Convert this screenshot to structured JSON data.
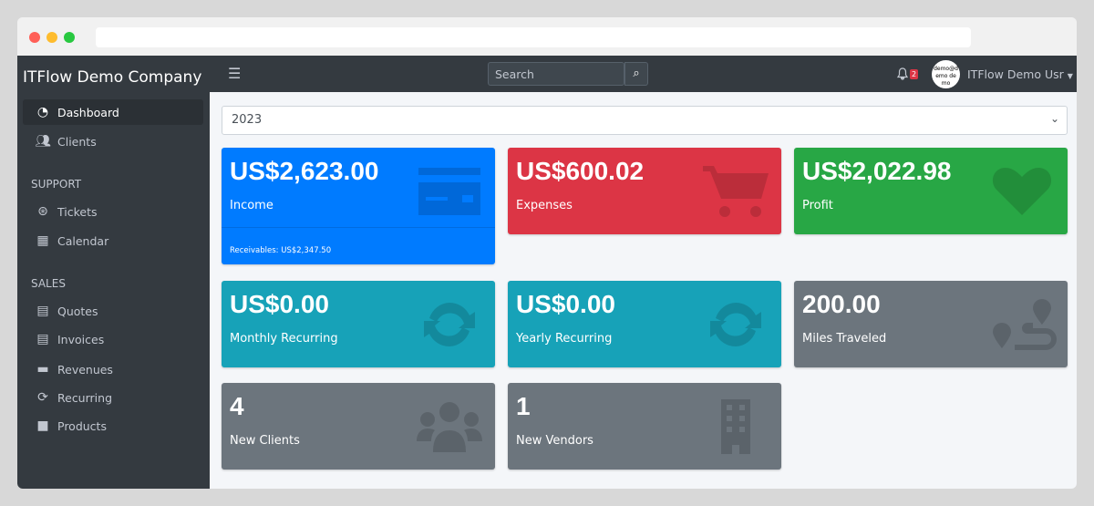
{
  "window": {
    "dots": [
      "#ff5f57",
      "#febc2e",
      "#28c840"
    ]
  },
  "sidebar": {
    "brand": "ITFlow Demo Company",
    "items": [
      {
        "label": "Dashboard",
        "icon": "tachometer-icon"
      },
      {
        "label": "Clients",
        "icon": "users-icon"
      }
    ],
    "support_header": "SUPPORT",
    "support": [
      {
        "label": "Tickets",
        "icon": "life-ring-icon"
      },
      {
        "label": "Calendar",
        "icon": "calendar-icon"
      }
    ],
    "sales_header": "SALES",
    "sales": [
      {
        "label": "Quotes",
        "icon": "file-icon"
      },
      {
        "label": "Invoices",
        "icon": "invoice-icon"
      },
      {
        "label": "Revenues",
        "icon": "credit-card-icon"
      },
      {
        "label": "Recurring",
        "icon": "sync-icon"
      },
      {
        "label": "Products",
        "icon": "box-icon"
      }
    ]
  },
  "topnav": {
    "search_placeholder": "Search",
    "notifications": "2",
    "avatar_text": "demo@demo demo",
    "user": "ITFlow Demo Usr"
  },
  "filter": {
    "year": "2023"
  },
  "cards": [
    {
      "value": "US$2,623.00",
      "label": "Income",
      "footer": "Receivables: US$2,347.50",
      "color": "#007bff",
      "icon": "credit-card-icon"
    },
    {
      "value": "US$600.02",
      "label": "Expenses",
      "color": "#dc3545",
      "icon": "cart-icon"
    },
    {
      "value": "US$2,022.98",
      "label": "Profit",
      "color": "#28a745",
      "icon": "heart-icon"
    },
    {
      "value": "US$0.00",
      "label": "Monthly Recurring",
      "color": "#17a2b8",
      "icon": "sync-icon"
    },
    {
      "value": "US$0.00",
      "label": "Yearly Recurring",
      "color": "#17a2b8",
      "icon": "sync-icon"
    },
    {
      "value": "200.00",
      "label": "Miles Traveled",
      "color": "#6c757d",
      "icon": "route-icon"
    },
    {
      "value": "4",
      "label": "New Clients",
      "color": "#6c757d",
      "icon": "users-icon"
    },
    {
      "value": "1",
      "label": "New Vendors",
      "color": "#6c757d",
      "icon": "building-icon"
    }
  ]
}
